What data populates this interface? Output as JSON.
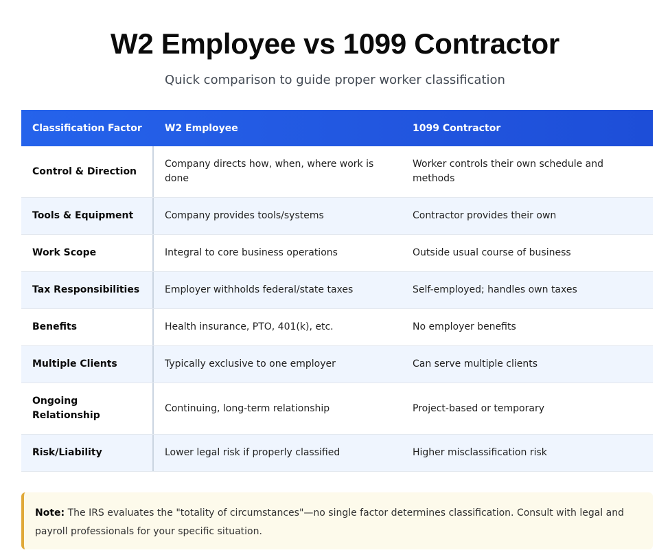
{
  "header": {
    "title": "W2 Employee vs 1099 Contractor",
    "subtitle": "Quick comparison to guide proper worker classification"
  },
  "table": {
    "columns": [
      "Classification Factor",
      "W2 Employee",
      "1099 Contractor"
    ],
    "rows": [
      {
        "factor": "Control & Direction",
        "w2": "Company directs how, when, where work is done",
        "contractor": "Worker controls their own schedule and methods"
      },
      {
        "factor": "Tools & Equipment",
        "w2": "Company provides tools/systems",
        "contractor": "Contractor provides their own"
      },
      {
        "factor": "Work Scope",
        "w2": "Integral to core business operations",
        "contractor": "Outside usual course of business"
      },
      {
        "factor": "Tax Responsibilities",
        "w2": "Employer withholds federal/state taxes",
        "contractor": "Self-employed; handles own taxes"
      },
      {
        "factor": "Benefits",
        "w2": "Health insurance, PTO, 401(k), etc.",
        "contractor": "No employer benefits"
      },
      {
        "factor": "Multiple Clients",
        "w2": "Typically exclusive to one employer",
        "contractor": "Can serve multiple clients"
      },
      {
        "factor": "Ongoing Relationship",
        "w2": "Continuing, long-term relationship",
        "contractor": "Project-based or temporary"
      },
      {
        "factor": "Risk/Liability",
        "w2": "Lower legal risk if properly classified",
        "contractor": "Higher misclassification risk"
      }
    ]
  },
  "note": {
    "label": "Note:",
    "text": " The IRS evaluates the \"totality of circumstances\"—no single factor determines classification. Consult with legal and payroll professionals for your specific situation."
  },
  "colors": {
    "header_start": "#2563eb",
    "header_end": "#1d4ed8",
    "row_alt": "#eff5fe",
    "note_bg": "#fdfaeb",
    "note_border": "#e0a93a"
  }
}
